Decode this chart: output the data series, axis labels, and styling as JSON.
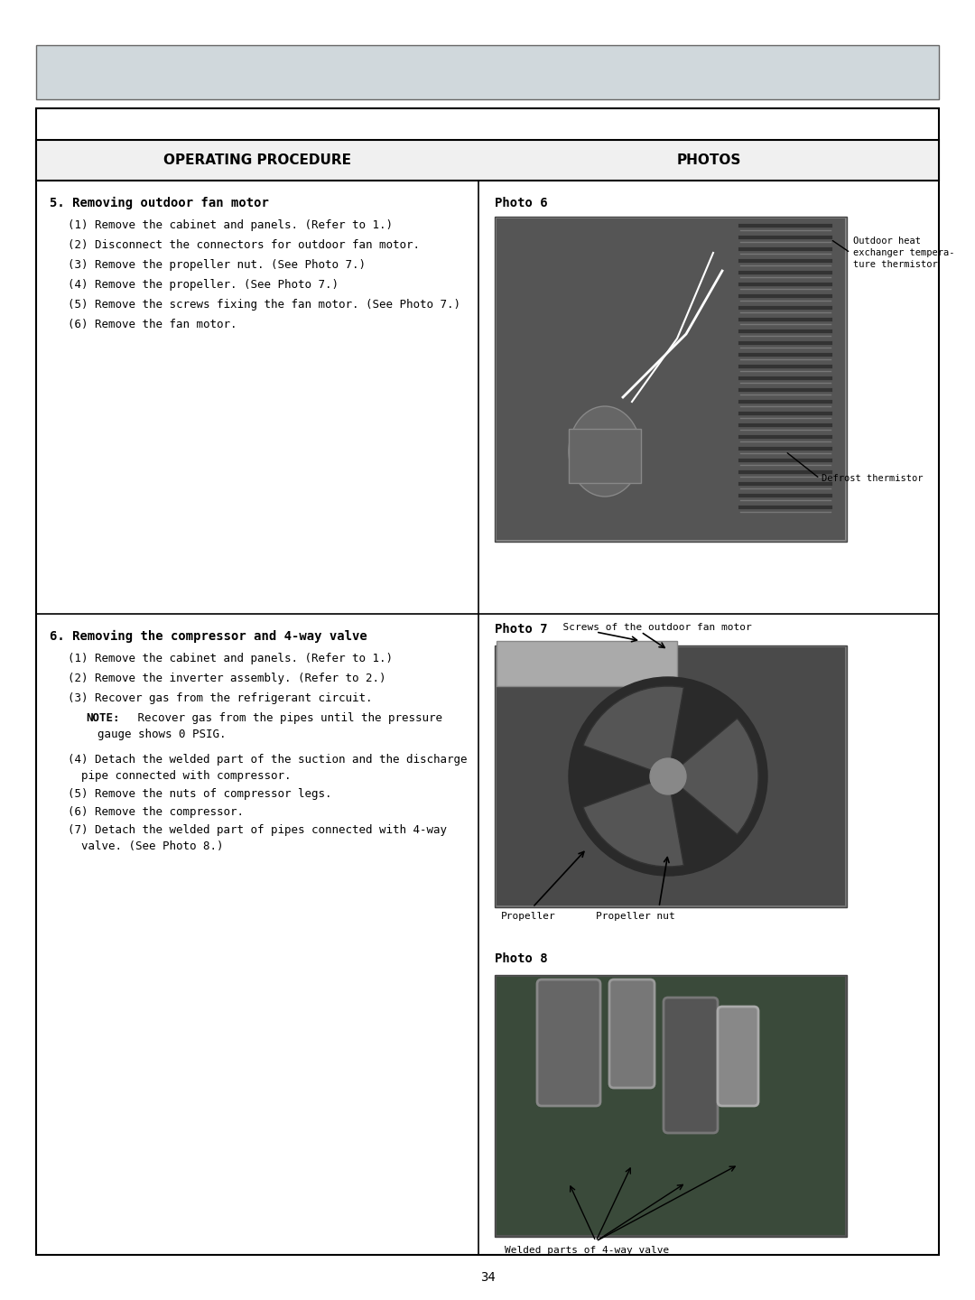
{
  "page_number": "34",
  "header_bg": "#d0d8dc",
  "table_border": "#000000",
  "col1_title": "OPERATING PROCEDURE",
  "col2_title": "PHOTOS",
  "section5_title": "5. Removing outdoor fan motor",
  "section5_steps": [
    "(1) Remove the cabinet and panels. (Refer to 1.)",
    "(2) Disconnect the connectors for outdoor fan motor.",
    "(3) Remove the propeller nut. (See Photo 7.)",
    "(4) Remove the propeller. (See Photo 7.)",
    "(5) Remove the screws fixing the fan motor. (See Photo 7.)",
    "(6) Remove the fan motor."
  ],
  "section6_title": "6. Removing the compressor and 4-way valve",
  "section6_steps_a": [
    "(1) Remove the cabinet and panels. (Refer to 1.)",
    "(2) Remove the inverter assembly. (Refer to 2.)",
    "(3) Recover gas from the refrigerant circuit."
  ],
  "section6_note": "NOTE: Recover gas from the pipes until the pressure\n    gauge shows 0 PSIG.",
  "section6_steps_b": [
    "(4) Detach the welded part of the suction and the discharge\n    pipe connected with compressor.",
    "(5) Remove the nuts of compressor legs.",
    "(6) Remove the compressor.",
    "(7) Detach the welded part of pipes connected with 4-way\n    valve. (See Photo 8.)"
  ],
  "photo6_label": "Photo 6",
  "photo6_annotation1": "Outdoor heat\nexchanger tempera-\nture thermistor",
  "photo6_annotation2": "Defrost thermistor",
  "photo7_label": "Photo 7",
  "photo7_annotation_top": "Screws of the outdoor fan motor",
  "photo7_annotation_propeller": "Propeller",
  "photo7_annotation_nut": "Propeller nut",
  "photo8_label": "Photo 8",
  "photo8_annotation": "Welded parts of 4-way valve",
  "bg_color": "#ffffff",
  "text_color": "#000000",
  "font_size_body": 9,
  "font_size_title": 10,
  "font_size_header": 11,
  "font_size_page": 10
}
